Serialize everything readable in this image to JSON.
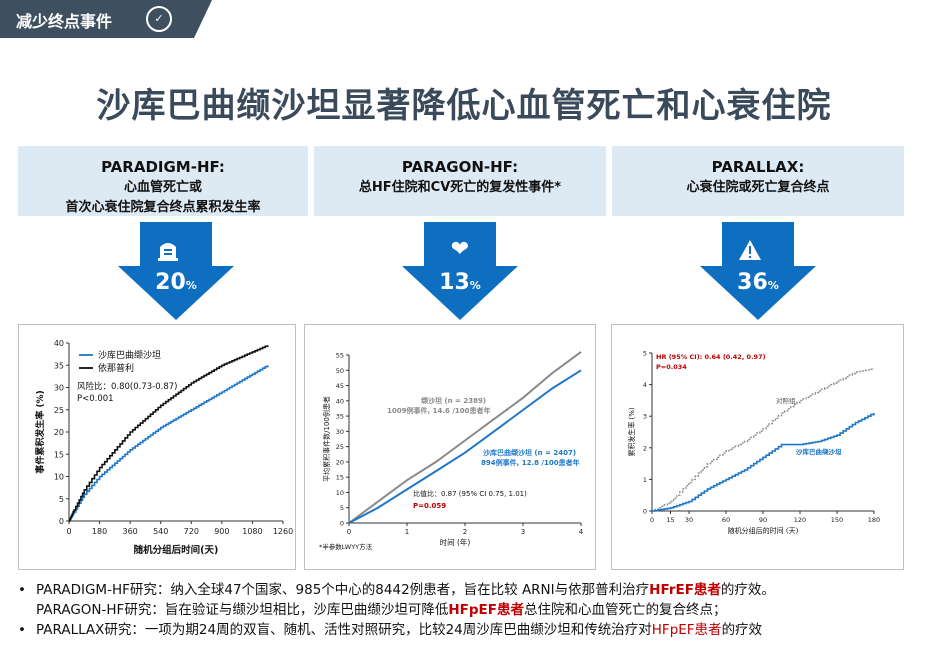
{
  "tag": {
    "label": "减少终点事件",
    "icon": "document-check-icon"
  },
  "title": "沙库巴曲缬沙坦显著降低心血管死亡和心衰住院",
  "colors": {
    "arrow": "#0e6fc1",
    "header_bg": "#ddeaf4",
    "tag_bg": "#3e4f60",
    "series_blue": "#1f77c9",
    "series_gray": "#8a8a8a",
    "highlight": "#c00000"
  },
  "trials": [
    {
      "name": "PARADIGM-HF:",
      "desc1": "心血管死亡或",
      "desc2": "首次心衰住院复合终点累积发生率",
      "icon": "hospital-icon",
      "pct": "20",
      "pct_unit": "%"
    },
    {
      "name": "PARAGON-HF:",
      "desc1": "总HF住院和CV死亡的复发性事件*",
      "desc2": "",
      "icon": "heart-icon",
      "pct": "13",
      "pct_unit": "%"
    },
    {
      "name": "PARALLAX:",
      "desc1": "心衰住院或死亡复合终点",
      "desc2": "",
      "icon": "warning-icon",
      "pct": "36",
      "pct_unit": "%"
    }
  ],
  "chart_data": [
    {
      "type": "line",
      "ylabel": "事件累积发生率 (%)",
      "xlabel": "随机分组后时间(天)",
      "xlim": [
        0,
        1260
      ],
      "ylim": [
        0,
        40
      ],
      "xticks": [
        0,
        180,
        360,
        540,
        720,
        900,
        1080,
        1260
      ],
      "yticks": [
        0,
        5,
        10,
        15,
        20,
        25,
        30,
        35,
        40
      ],
      "legend": [
        "沙库巴曲缬沙坦",
        "依那普利"
      ],
      "annotation": [
        "风险比：0.80(0.73-0.87)",
        "P<0.001"
      ],
      "series": [
        {
          "name": "沙库巴曲缬沙坦",
          "x": [
            0,
            30,
            90,
            180,
            270,
            360,
            450,
            540,
            630,
            720,
            810,
            900,
            990,
            1080,
            1170
          ],
          "y": [
            0,
            2,
            6,
            10,
            13,
            16,
            18.5,
            21,
            23,
            25,
            27,
            29,
            31,
            33,
            35
          ]
        },
        {
          "name": "依那普利",
          "x": [
            0,
            30,
            90,
            180,
            270,
            360,
            450,
            540,
            630,
            720,
            810,
            900,
            990,
            1080,
            1170
          ],
          "y": [
            0,
            2.5,
            7,
            12,
            16,
            20,
            23,
            26,
            28.5,
            31,
            33,
            35,
            36.5,
            38,
            39.5
          ]
        }
      ]
    },
    {
      "type": "line",
      "ylabel": "平均累积事件数/100例患者",
      "xlabel": "时间 (年)",
      "xlim": [
        0,
        4
      ],
      "ylim": [
        0,
        55
      ],
      "xticks": [
        0,
        1,
        2,
        3,
        4
      ],
      "yticks": [
        0,
        5,
        10,
        15,
        20,
        25,
        30,
        35,
        40,
        45,
        50,
        55
      ],
      "footnote": "*半参数LWYY方法",
      "annotation": [
        "比值比：0.87 (95% CI 0.75, 1.01)",
        "P=0.059"
      ],
      "series": [
        {
          "name": "缬沙坦 (n = 2389)",
          "note": "1009例事件, 14.6 /100患者年",
          "x": [
            0,
            0.5,
            1,
            1.5,
            2,
            2.5,
            3,
            3.5,
            4
          ],
          "y": [
            0,
            7,
            14,
            20,
            27,
            34,
            41,
            49,
            56
          ]
        },
        {
          "name": "沙库巴曲缬沙坦 (n = 2407)",
          "note": "894例事件, 12.8 /100患者年",
          "x": [
            0,
            0.5,
            1,
            1.5,
            2,
            2.5,
            3,
            3.5,
            4
          ],
          "y": [
            0,
            5,
            11,
            17,
            23,
            30,
            37,
            44,
            50
          ]
        }
      ]
    },
    {
      "type": "line",
      "ylabel": "累积发生率 (%)",
      "xlabel": "随机分组后的时间 (天)",
      "xlim": [
        0,
        180
      ],
      "ylim": [
        0,
        5
      ],
      "xticks": [
        0,
        15,
        30,
        60,
        90,
        120,
        150,
        180
      ],
      "yticks": [
        0,
        1,
        2,
        3,
        4,
        5
      ],
      "annotation": [
        "HR (95% CI): 0.64 (0.42, 0.97)",
        "P=0.034"
      ],
      "series": [
        {
          "name": "对照组",
          "x": [
            0,
            15,
            30,
            45,
            60,
            75,
            90,
            105,
            120,
            135,
            150,
            165,
            180
          ],
          "y": [
            0,
            0.3,
            0.9,
            1.5,
            1.9,
            2.2,
            2.6,
            3.1,
            3.5,
            3.8,
            4.1,
            4.4,
            4.5
          ]
        },
        {
          "name": "沙库巴曲缬沙坦",
          "x": [
            0,
            15,
            30,
            45,
            60,
            75,
            90,
            105,
            120,
            135,
            150,
            165,
            180
          ],
          "y": [
            0,
            0.1,
            0.3,
            0.7,
            1.0,
            1.3,
            1.7,
            2.1,
            2.1,
            2.2,
            2.4,
            2.8,
            3.1
          ]
        }
      ]
    }
  ],
  "notes": [
    {
      "pre": "PARADIGM-HF研究：纳入全球47个国家、985个中心的8442例患者，旨在比较 ARNI与依那普利治疗",
      "hl": "HFrEF患者",
      "post": "的疗效。"
    },
    {
      "pre": "PARAGON-HF研究：旨在验证与缬沙坦相比，沙库巴曲缬沙坦可降低",
      "hl": "HFpEF患者",
      "post": "总住院和心血管死亡的复合终点；"
    },
    {
      "pre": "PARALLAX研究：一项为期24周的双盲、随机、活性对照研究，比较24周沙库巴曲缬沙坦和传统治疗对",
      "hl": "HFpEF患者",
      "post": "的疗效"
    }
  ]
}
